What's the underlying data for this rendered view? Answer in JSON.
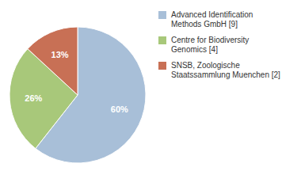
{
  "chart_data": {
    "type": "pie",
    "categories": [
      "Advanced Identification\nMethods GmbH [9]",
      "Centre for Biodiversity\nGenomics [4]",
      "SNSB, Zoologische\nStaatssammlung Muenchen [2]"
    ],
    "values": [
      60,
      26,
      13
    ],
    "value_labels": [
      "60%",
      "26%",
      "13%"
    ],
    "colors": [
      "#a8bfd8",
      "#a8c87a",
      "#c87055"
    ],
    "data_labels": true,
    "legend": "right"
  }
}
